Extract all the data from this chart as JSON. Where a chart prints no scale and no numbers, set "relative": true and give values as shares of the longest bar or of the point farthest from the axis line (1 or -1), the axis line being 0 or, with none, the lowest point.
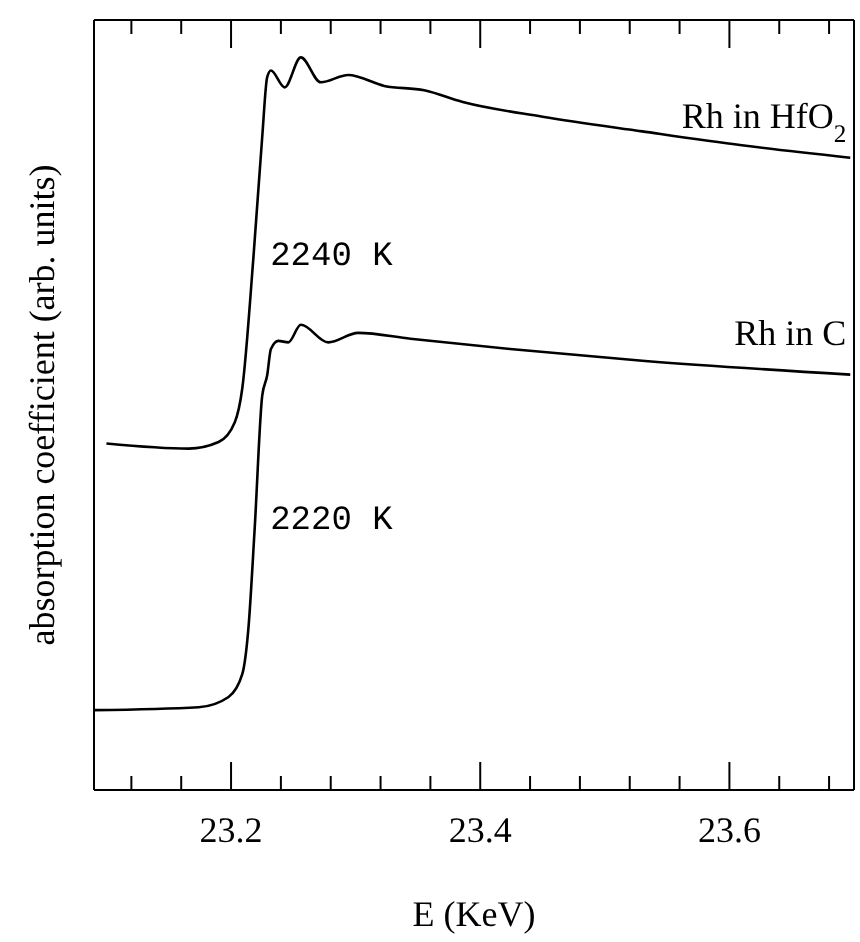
{
  "chart_data": {
    "type": "line",
    "relative": true,
    "xlabel": "E (KeV)",
    "ylabel": "absorption coefficient (arb. units)",
    "xlim": [
      23.09,
      23.7
    ],
    "xticks": [
      {
        "value": 23.12,
        "label": null
      },
      {
        "value": 23.16,
        "label": null
      },
      {
        "value": 23.2,
        "label": "23.2"
      },
      {
        "value": 23.24,
        "label": null
      },
      {
        "value": 23.28,
        "label": null
      },
      {
        "value": 23.32,
        "label": null
      },
      {
        "value": 23.36,
        "label": null
      },
      {
        "value": 23.4,
        "label": "23.4"
      },
      {
        "value": 23.44,
        "label": null
      },
      {
        "value": 23.48,
        "label": null
      },
      {
        "value": 23.52,
        "label": null
      },
      {
        "value": 23.56,
        "label": null
      },
      {
        "value": 23.6,
        "label": "23.6"
      },
      {
        "value": 23.64,
        "label": null
      },
      {
        "value": 23.68,
        "label": null
      }
    ],
    "tick_labels": "x",
    "grid": false,
    "marker": "none",
    "line_style": "solid",
    "series": [
      {
        "name": "Rh in HfO$_{2}$",
        "color": "#000000",
        "x": [
          23.1,
          23.166,
          23.19,
          23.203,
          23.209,
          23.218,
          23.225,
          23.229,
          23.232,
          23.243,
          23.256,
          23.272,
          23.294,
          23.323,
          23.355,
          23.386,
          23.45,
          23.53,
          23.61,
          23.697
        ],
        "values": [
          0.473,
          0.466,
          0.475,
          0.502,
          0.548,
          0.728,
          0.891,
          0.973,
          0.982,
          0.959,
          1.0,
          0.966,
          0.976,
          0.961,
          0.955,
          0.939,
          0.919,
          0.899,
          0.88,
          0.863
        ]
      },
      {
        "name": "Rh in C",
        "color": "#000000",
        "x": [
          23.09,
          23.174,
          23.198,
          23.209,
          23.214,
          23.219,
          23.225,
          23.229,
          23.232,
          23.238,
          23.246,
          23.256,
          23.278,
          23.302,
          23.344,
          23.424,
          23.53,
          23.697
        ],
        "values": [
          0.109,
          0.113,
          0.127,
          0.158,
          0.222,
          0.358,
          0.538,
          0.566,
          0.602,
          0.613,
          0.611,
          0.635,
          0.611,
          0.624,
          0.616,
          0.602,
          0.586,
          0.567
        ]
      }
    ],
    "annotations": [
      "2240 K",
      "2220 K"
    ]
  }
}
